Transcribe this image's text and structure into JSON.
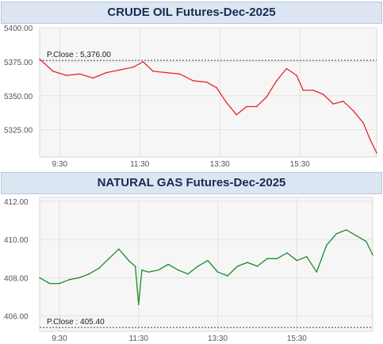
{
  "chart_data": [
    {
      "type": "line",
      "title": "CRUDE OIL Futures-Dec-2025",
      "x_ticks": [
        "9:30",
        "11:30",
        "13:30",
        "15:30"
      ],
      "x_start": "9:00",
      "x_end": "17:25",
      "ylim": [
        5305,
        5400
      ],
      "y_ticks": [
        "5400.00",
        "5375.00",
        "5350.00",
        "5325.00"
      ],
      "y_tick_values": [
        5400,
        5375,
        5350,
        5325
      ],
      "reference": {
        "label": "P.Close : 5,376.00",
        "value": 5376
      },
      "line_color": "#e8262b",
      "x": [
        "9:00",
        "9:20",
        "9:40",
        "10:00",
        "10:20",
        "10:40",
        "11:00",
        "11:20",
        "11:35",
        "11:50",
        "12:10",
        "12:30",
        "12:50",
        "13:10",
        "13:25",
        "13:40",
        "13:55",
        "14:10",
        "14:25",
        "14:40",
        "14:55",
        "15:10",
        "15:25",
        "15:35",
        "15:50",
        "16:05",
        "16:20",
        "16:35",
        "16:50",
        "17:05",
        "17:15",
        "17:25"
      ],
      "y": [
        5377,
        5368,
        5365,
        5366,
        5363,
        5367,
        5369,
        5371,
        5375,
        5368,
        5367,
        5366,
        5361,
        5360,
        5356,
        5345,
        5336,
        5342,
        5342,
        5349,
        5361,
        5370,
        5365,
        5354,
        5354,
        5351,
        5344,
        5346,
        5339,
        5330,
        5318,
        5308
      ]
    },
    {
      "type": "line",
      "title": "NATURAL GAS Futures-Dec-2025",
      "x_ticks": [
        "9:30",
        "11:30",
        "13:30",
        "15:30"
      ],
      "x_start": "9:00",
      "x_end": "17:25",
      "ylim": [
        405.2,
        412.2
      ],
      "y_ticks": [
        "412.00",
        "410.00",
        "408.00",
        "406.00"
      ],
      "y_tick_values": [
        412,
        410,
        408,
        406
      ],
      "reference": {
        "label": "P.Close : 405.40",
        "value": 405.4
      },
      "line_color": "#1e8a2a",
      "x": [
        "9:00",
        "9:15",
        "9:30",
        "9:45",
        "10:00",
        "10:15",
        "10:30",
        "10:45",
        "11:00",
        "11:15",
        "11:25",
        "11:30",
        "11:35",
        "11:45",
        "12:00",
        "12:15",
        "12:30",
        "12:45",
        "13:00",
        "13:15",
        "13:30",
        "13:45",
        "14:00",
        "14:15",
        "14:30",
        "14:45",
        "15:00",
        "15:15",
        "15:30",
        "15:45",
        "16:00",
        "16:15",
        "16:30",
        "16:45",
        "17:00",
        "17:15",
        "17:25"
      ],
      "y": [
        408.0,
        407.7,
        407.7,
        407.9,
        408.0,
        408.2,
        408.5,
        409.0,
        409.5,
        408.9,
        408.6,
        406.6,
        408.4,
        408.3,
        408.4,
        408.7,
        408.4,
        408.2,
        408.6,
        408.9,
        408.3,
        408.1,
        408.6,
        408.8,
        408.6,
        409.0,
        409.0,
        409.3,
        408.9,
        409.1,
        408.3,
        409.7,
        410.3,
        410.5,
        410.2,
        409.9,
        409.2
      ]
    }
  ]
}
